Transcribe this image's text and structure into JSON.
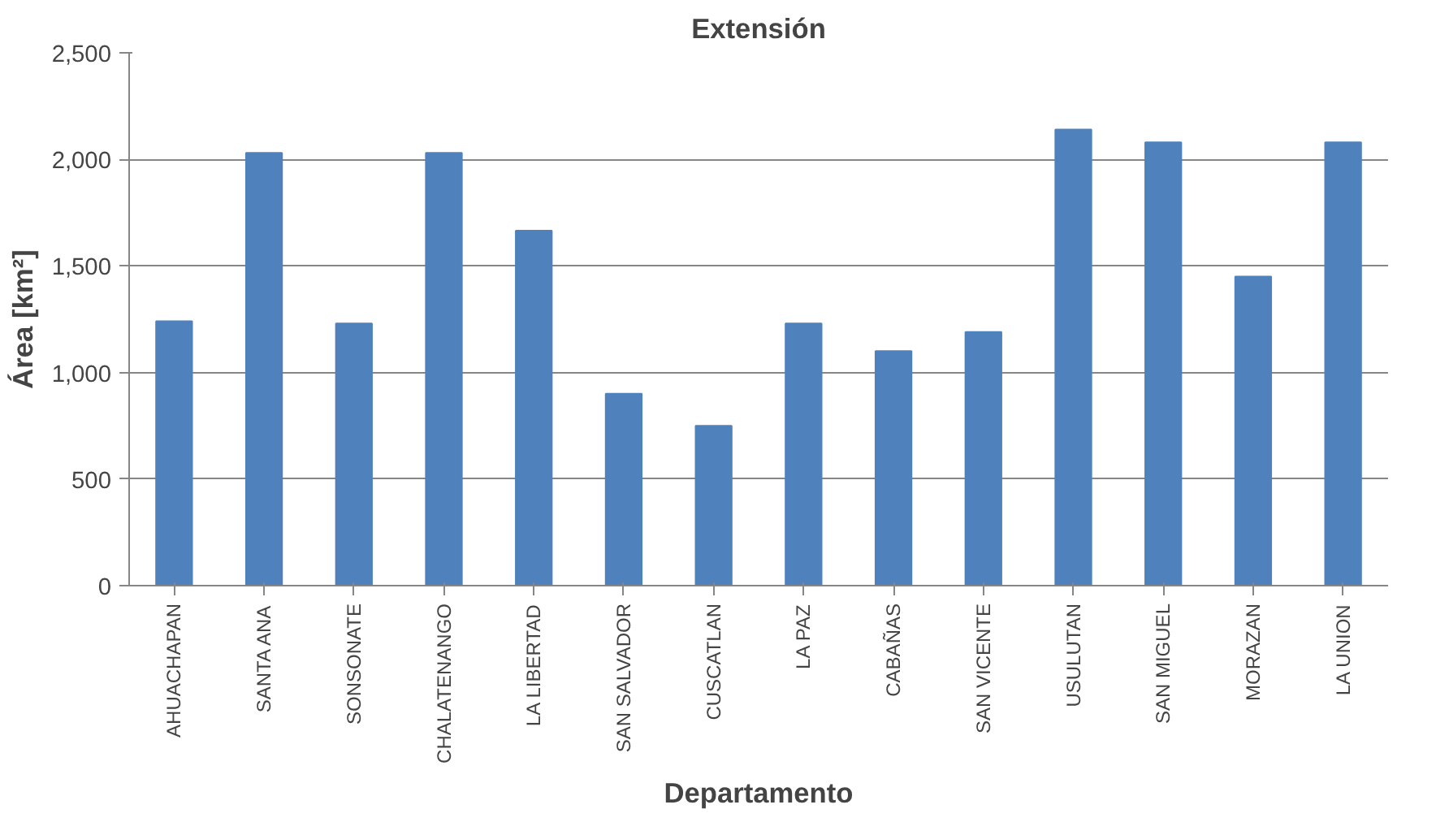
{
  "chart_data": {
    "type": "bar",
    "title": "Extensión",
    "xlabel": "Departamento",
    "ylabel": "Área [km²]",
    "categories": [
      "AHUACHAPAN",
      "SANTA ANA",
      "SONSONATE",
      "CHALATENANGO",
      "LA LIBERTAD",
      "SAN SALVADOR",
      "CUSCATLAN",
      "LA PAZ",
      "CABAÑAS",
      "SAN VICENTE",
      "USULUTAN",
      "SAN MIGUEL",
      "MORAZAN",
      "LA UNION"
    ],
    "values": [
      1240,
      2030,
      1230,
      2030,
      1665,
      900,
      750,
      1230,
      1100,
      1190,
      2140,
      2080,
      1450,
      2080
    ],
    "color": "#4f81bd",
    "ylim": [
      0,
      2500
    ],
    "yticks": [
      0,
      500,
      {
        "value": 1000,
        "label": "1,000"
      },
      {
        "value": 1500,
        "label": "1,500"
      },
      {
        "value": 2000,
        "label": "2,000"
      },
      {
        "value": 2500,
        "label": "2,500"
      }
    ],
    "grid": "y"
  }
}
